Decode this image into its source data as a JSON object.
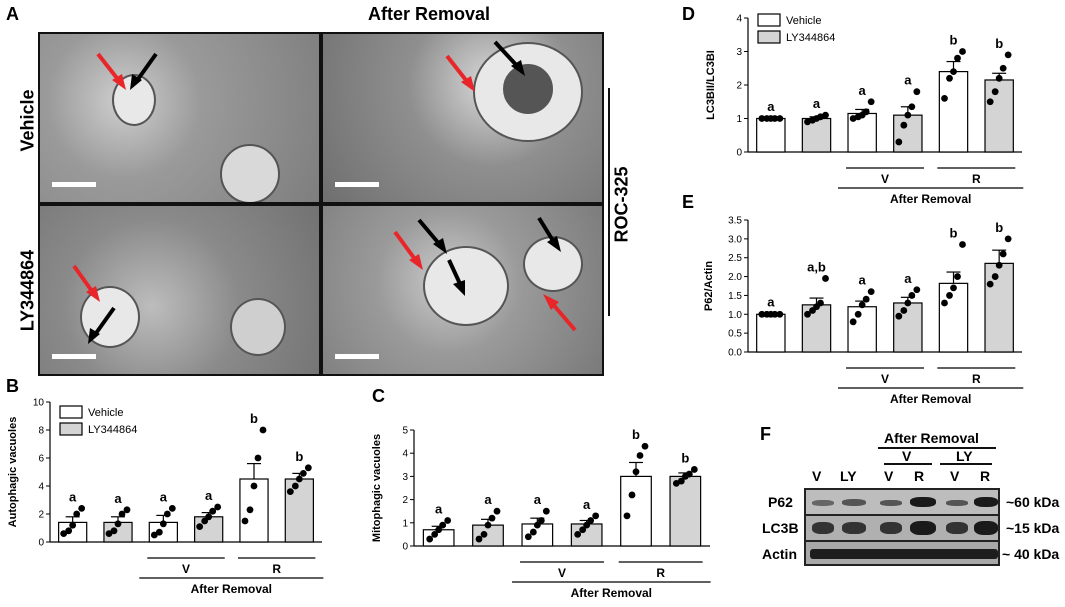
{
  "figure": {
    "panel_labels": {
      "a": "A",
      "b": "B",
      "c": "C",
      "d": "D",
      "e": "E",
      "f": "F"
    },
    "panel_a": {
      "header": "After Removal",
      "row_labels": [
        "Vehicle",
        "LY344864"
      ],
      "side_label": "ROC-325",
      "arrow_colors": {
        "red": "#e8262a",
        "black": "#000000"
      }
    },
    "panel_f": {
      "header": "After Removal",
      "lanes": [
        "V",
        "LY",
        "V",
        "R",
        "V",
        "R"
      ],
      "group_labels": [
        "V",
        "LY"
      ],
      "rows": [
        {
          "name": "P62",
          "size": "~60 kDa"
        },
        {
          "name": "LC3B",
          "size": "~15 kDa"
        },
        {
          "name": "Actin",
          "size": "~ 40 kDa"
        }
      ]
    },
    "colors": {
      "vehicle_fill": "#ffffff",
      "ly_fill": "#d4d4d4",
      "dot": "#000000"
    }
  },
  "chart_data": [
    {
      "id": "B",
      "type": "bar",
      "ylabel": "Autophagic vacuoles",
      "ylim": [
        0,
        10
      ],
      "yticks": [
        0,
        2,
        4,
        6,
        8,
        10
      ],
      "legend": [
        "Vehicle",
        "LY344864"
      ],
      "legend_position": "top-left",
      "categories": [
        "1",
        "2",
        "3",
        "4",
        "5",
        "6"
      ],
      "values": [
        1.4,
        1.4,
        1.4,
        1.8,
        4.5,
        4.5
      ],
      "errors": [
        0.4,
        0.4,
        0.5,
        0.3,
        1.1,
        0.4
      ],
      "fill": [
        "vehicle",
        "ly",
        "vehicle",
        "ly",
        "vehicle",
        "ly"
      ],
      "letters": [
        "a",
        "a",
        "a",
        "a",
        "b",
        "b"
      ],
      "points": [
        [
          0.6,
          0.8,
          1.2,
          2.0,
          2.4
        ],
        [
          0.6,
          0.8,
          1.3,
          2.0,
          2.3
        ],
        [
          0.5,
          0.7,
          1.3,
          2.0,
          2.4
        ],
        [
          1.1,
          1.5,
          1.8,
          2.2,
          2.5
        ],
        [
          1.5,
          2.3,
          4.0,
          6.0,
          8.0
        ],
        [
          3.6,
          4.0,
          4.5,
          4.9,
          5.3
        ]
      ],
      "groups": [
        {
          "label": "V",
          "from": 2,
          "to": 3
        },
        {
          "label": "R",
          "from": 4,
          "to": 5
        }
      ],
      "group_title": "After Removal"
    },
    {
      "id": "C",
      "type": "bar",
      "ylabel": "Mitophagic vacuoles",
      "ylim": [
        0,
        5
      ],
      "yticks": [
        0,
        1,
        2,
        3,
        4,
        5
      ],
      "legend": [],
      "categories": [
        "1",
        "2",
        "3",
        "4",
        "5",
        "6"
      ],
      "values": [
        0.7,
        0.9,
        0.95,
        0.95,
        3.0,
        3.0
      ],
      "errors": [
        0.15,
        0.25,
        0.25,
        0.15,
        0.6,
        0.15
      ],
      "fill": [
        "vehicle",
        "ly",
        "vehicle",
        "ly",
        "vehicle",
        "ly"
      ],
      "letters": [
        "a",
        "a",
        "a",
        "a",
        "b",
        "b"
      ],
      "points": [
        [
          0.3,
          0.5,
          0.7,
          0.9,
          1.1
        ],
        [
          0.3,
          0.5,
          0.9,
          1.2,
          1.5
        ],
        [
          0.4,
          0.6,
          0.9,
          1.1,
          1.5
        ],
        [
          0.5,
          0.7,
          0.9,
          1.1,
          1.3
        ],
        [
          1.3,
          2.2,
          3.2,
          3.9,
          4.3
        ],
        [
          2.7,
          2.8,
          3.0,
          3.1,
          3.3
        ]
      ],
      "groups": [
        {
          "label": "V",
          "from": 2,
          "to": 3
        },
        {
          "label": "R",
          "from": 4,
          "to": 5
        }
      ],
      "group_title": "After Removal"
    },
    {
      "id": "D",
      "type": "bar",
      "ylabel": "LC3BII/LC3BI",
      "ylim": [
        0,
        4
      ],
      "yticks": [
        0,
        1,
        2,
        3,
        4
      ],
      "legend": [
        "Vehicle",
        "LY344864"
      ],
      "legend_position": "top-left",
      "categories": [
        "1",
        "2",
        "3",
        "4",
        "5",
        "6"
      ],
      "values": [
        1.0,
        1.0,
        1.15,
        1.1,
        2.4,
        2.15
      ],
      "errors": [
        0.02,
        0.05,
        0.12,
        0.25,
        0.3,
        0.2
      ],
      "fill": [
        "vehicle",
        "ly",
        "vehicle",
        "ly",
        "vehicle",
        "ly"
      ],
      "letters": [
        "a",
        "a",
        "a",
        "a",
        "b",
        "b"
      ],
      "points": [
        [
          1.0,
          1.0,
          1.0,
          1.0,
          1.0
        ],
        [
          0.9,
          0.95,
          1.0,
          1.05,
          1.1
        ],
        [
          1.0,
          1.05,
          1.1,
          1.2,
          1.5
        ],
        [
          0.3,
          0.8,
          1.1,
          1.35,
          1.8
        ],
        [
          1.6,
          2.2,
          2.4,
          2.8,
          3.0
        ],
        [
          1.5,
          1.8,
          2.2,
          2.5,
          2.9
        ]
      ],
      "groups": [
        {
          "label": "V",
          "from": 2,
          "to": 3
        },
        {
          "label": "R",
          "from": 4,
          "to": 5
        }
      ],
      "group_title": "After Removal"
    },
    {
      "id": "E",
      "type": "bar",
      "ylabel": "P62/Actin",
      "ylim": [
        0,
        3.5
      ],
      "yticks": [
        "0.0",
        "0.5",
        "1.0",
        "1.5",
        "2.0",
        "2.5",
        "3.0",
        "3.5"
      ],
      "legend": [],
      "categories": [
        "1",
        "2",
        "3",
        "4",
        "5",
        "6"
      ],
      "values": [
        1.0,
        1.25,
        1.2,
        1.3,
        1.82,
        2.35
      ],
      "errors": [
        0.02,
        0.18,
        0.15,
        0.15,
        0.3,
        0.35
      ],
      "fill": [
        "vehicle",
        "ly",
        "vehicle",
        "ly",
        "vehicle",
        "ly"
      ],
      "letters": [
        "a",
        "a,b",
        "a",
        "a",
        "b",
        "b"
      ],
      "points": [
        [
          1.0,
          1.0,
          1.0,
          1.0,
          1.0
        ],
        [
          1.0,
          1.1,
          1.2,
          1.3,
          1.95
        ],
        [
          0.8,
          1.0,
          1.25,
          1.4,
          1.6
        ],
        [
          0.95,
          1.1,
          1.3,
          1.5,
          1.65
        ],
        [
          1.3,
          1.5,
          1.7,
          2.0,
          2.85
        ],
        [
          1.8,
          2.0,
          2.3,
          2.6,
          3.0
        ]
      ],
      "groups": [
        {
          "label": "V",
          "from": 2,
          "to": 3
        },
        {
          "label": "R",
          "from": 4,
          "to": 5
        }
      ],
      "group_title": "After Removal"
    }
  ]
}
